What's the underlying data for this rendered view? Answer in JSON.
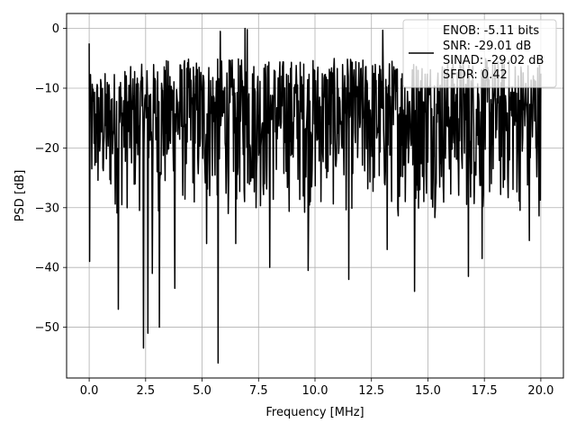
{
  "chart_data": {
    "type": "line",
    "xlabel": "Frequency [MHz]",
    "ylabel": "PSD [dB]",
    "xlim": [
      -1,
      21
    ],
    "ylim": [
      -58.5,
      2.5
    ],
    "xticks": [
      0,
      2.5,
      5,
      7.5,
      10,
      12.5,
      15,
      17.5,
      20
    ],
    "xtick_labels": [
      "0.0",
      "2.5",
      "5.0",
      "7.5",
      "10.0",
      "12.5",
      "15.0",
      "17.5",
      "20.0"
    ],
    "yticks": [
      0,
      -10,
      -20,
      -30,
      -40,
      -50
    ],
    "ytick_labels": [
      "0",
      "−10",
      "−20",
      "−30",
      "−40",
      "−50"
    ],
    "grid": true,
    "legend": {
      "placement": "top-right",
      "lines": [
        "ENOB: -5.11 bits",
        "SNR: -29.01 dB",
        "SINAD: -29.02 dB",
        "SFDR: 0.42"
      ]
    },
    "series": [
      {
        "color": "#000000",
        "x_range": [
          0,
          20
        ],
        "num_points": 1024,
        "typical_range_db": [
          -32,
          -5
        ],
        "peaks": [
          {
            "x": 0.0,
            "y": -2.5
          },
          {
            "x": 5.8,
            "y": -0.5
          },
          {
            "x": 6.9,
            "y": 0.0
          },
          {
            "x": 7.0,
            "y": -0.2
          },
          {
            "x": 13.0,
            "y": -0.3
          }
        ],
        "dips": [
          {
            "x": 0.0,
            "y": -39
          },
          {
            "x": 1.3,
            "y": -47
          },
          {
            "x": 2.4,
            "y": -53.5
          },
          {
            "x": 2.6,
            "y": -51
          },
          {
            "x": 2.8,
            "y": -41
          },
          {
            "x": 3.1,
            "y": -50
          },
          {
            "x": 3.8,
            "y": -43.5
          },
          {
            "x": 5.2,
            "y": -36
          },
          {
            "x": 5.7,
            "y": -56
          },
          {
            "x": 6.5,
            "y": -36
          },
          {
            "x": 8.0,
            "y": -40
          },
          {
            "x": 9.7,
            "y": -40.5
          },
          {
            "x": 11.5,
            "y": -42
          },
          {
            "x": 13.2,
            "y": -37
          },
          {
            "x": 14.4,
            "y": -44
          },
          {
            "x": 16.8,
            "y": -41.5
          },
          {
            "x": 17.4,
            "y": -38.5
          },
          {
            "x": 19.5,
            "y": -35.5
          }
        ]
      }
    ]
  }
}
